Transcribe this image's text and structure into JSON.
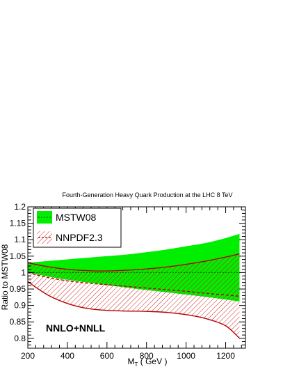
{
  "chart_data": {
    "type": "area",
    "title": "Fourth-Generation Heavy Quark Production at the LHC 8 TeV",
    "xlabel_main": "M",
    "xlabel_sub": "T",
    "xlabel_unit": " ( GeV )",
    "ylabel": "Ratio to MSTW08",
    "xlim": [
      200,
      1300
    ],
    "ylim": [
      0.77,
      1.2
    ],
    "xticks": [
      "200",
      "400",
      "600",
      "800",
      "1000",
      "1200"
    ],
    "yticks": [
      "0.8",
      "0.85",
      "0.9",
      "0.95",
      "1",
      "1.05",
      "1.1",
      "1.15",
      "1.2"
    ],
    "annotation": "NNLO+NNLL",
    "x": [
      200,
      300,
      400,
      500,
      600,
      700,
      800,
      900,
      1000,
      1100,
      1200,
      1270
    ],
    "series": [
      {
        "name": "MSTW08",
        "central": [
          1.0,
          1.0,
          1.0,
          1.0,
          1.0,
          1.0,
          1.0,
          1.0,
          1.0,
          1.0,
          1.0,
          1.0
        ],
        "upper": [
          1.03,
          1.035,
          1.04,
          1.045,
          1.05,
          1.055,
          1.062,
          1.07,
          1.08,
          1.09,
          1.105,
          1.118
        ],
        "lower": [
          1.0,
          0.988,
          0.978,
          0.97,
          0.962,
          0.954,
          0.947,
          0.94,
          0.933,
          0.926,
          0.918,
          0.912
        ],
        "color": "#00ee00"
      },
      {
        "name": "NNPDF2.3",
        "central": [
          1.0,
          0.985,
          0.975,
          0.968,
          0.963,
          0.958,
          0.953,
          0.948,
          0.943,
          0.937,
          0.932,
          0.928
        ],
        "upper": [
          1.03,
          1.018,
          1.01,
          1.006,
          1.005,
          1.007,
          1.011,
          1.017,
          1.025,
          1.035,
          1.047,
          1.057
        ],
        "lower": [
          0.972,
          0.932,
          0.906,
          0.891,
          0.885,
          0.883,
          0.882,
          0.879,
          0.872,
          0.86,
          0.838,
          0.8
        ],
        "color": "#b40000"
      }
    ]
  }
}
